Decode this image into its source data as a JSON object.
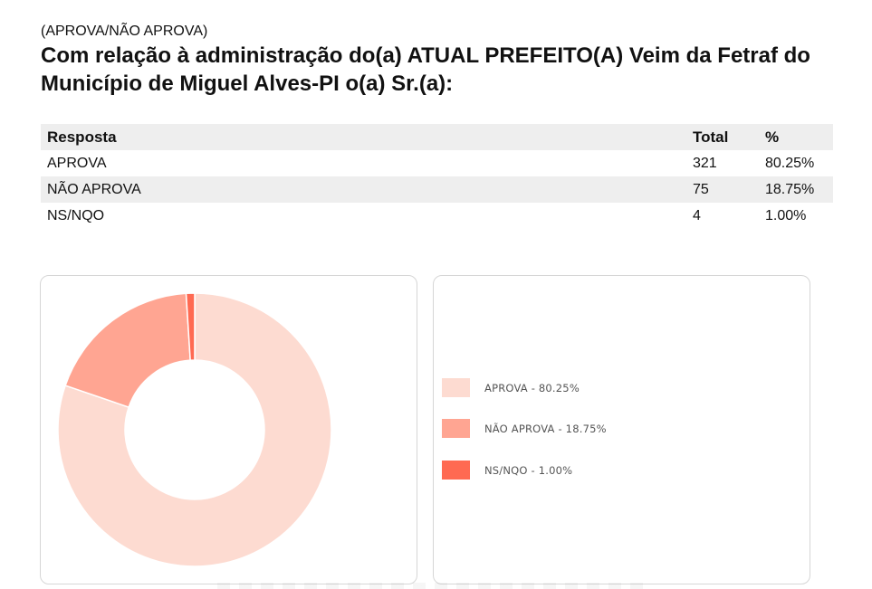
{
  "header": {
    "subtitle": "(APROVA/NÃO APROVA)",
    "title": "Com relação à administração do(a) ATUAL PREFEITO(A) Veim da Fetraf do Município de Miguel Alves-PI o(a) Sr.(a):"
  },
  "table": {
    "columns": [
      "Resposta",
      "Total",
      "%"
    ],
    "rows": [
      {
        "resposta": "APROVA",
        "total": "321",
        "pct": "80.25%"
      },
      {
        "resposta": "NÃO APROVA",
        "total": "75",
        "pct": "18.75%"
      },
      {
        "resposta": "NS/NQO",
        "total": "4",
        "pct": "1.00%"
      }
    ]
  },
  "legend": {
    "items": [
      {
        "label": "APROVA - 80.25%",
        "color": "#fddbd1"
      },
      {
        "label": "NÃO APROVA - 18.75%",
        "color": "#ffa592"
      },
      {
        "label": "NS/NQO - 1.00%",
        "color": "#ff6a52"
      }
    ]
  },
  "chart_data": {
    "type": "pie",
    "variant": "donut",
    "title": "(APROVA/NÃO APROVA) Com relação à administração do(a) ATUAL PREFEITO(A) Veim da Fetraf do Município de Miguel Alves-PI o(a) Sr.(a):",
    "categories": [
      "APROVA",
      "NÃO APROVA",
      "NS/NQO"
    ],
    "values": [
      321,
      75,
      4
    ],
    "percentages": [
      80.25,
      18.75,
      1.0
    ],
    "colors": [
      "#fddbd1",
      "#ffa592",
      "#ff6a52"
    ],
    "legend_position": "right",
    "legend_labels": [
      "APROVA - 80.25%",
      "NÃO APROVA - 18.75%",
      "NS/NQO - 1.00%"
    ]
  }
}
